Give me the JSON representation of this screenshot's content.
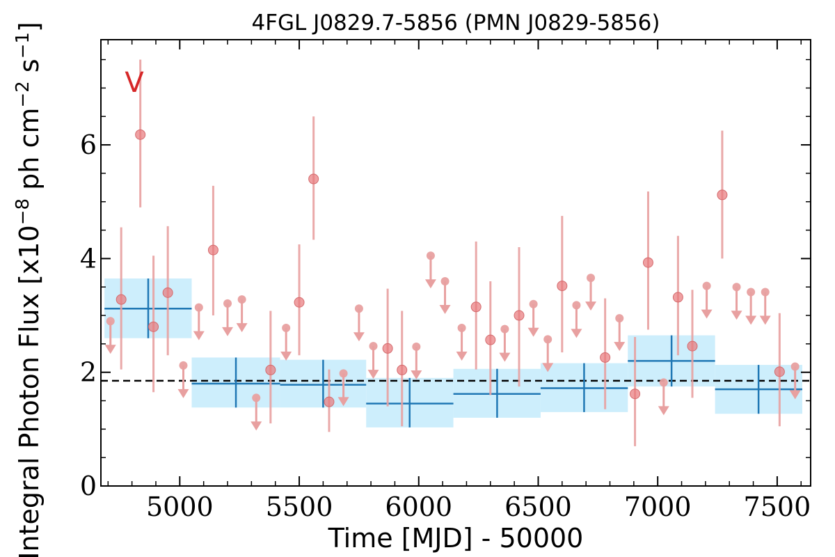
{
  "chart_data": {
    "type": "scatter",
    "title": "4FGL J0829.7-5856 (PMN J0829-5856)",
    "xlabel": "Time [MJD] - 50000",
    "ylabel": "Integral Photon Flux [x10",
    "ylabel_sup1": "−8",
    "ylabel_mid": " ph cm",
    "ylabel_sup2": "−2",
    "ylabel_mid2": " s",
    "ylabel_sup3": "−1",
    "ylabel_end": "]",
    "xlim": [
      4670,
      7640
    ],
    "ylim": [
      0,
      7.85
    ],
    "x_ticks": [
      5000,
      5500,
      6000,
      6500,
      7000,
      7500
    ],
    "x_tick_labels": [
      "5000",
      "5500",
      "6000",
      "6500",
      "7000",
      "7500"
    ],
    "y_ticks": [
      0,
      2,
      4,
      6
    ],
    "y_tick_labels": [
      "0",
      "2",
      "4",
      "6"
    ],
    "annotation": {
      "text": "V",
      "x": 4810,
      "y": 7.1
    },
    "mean_flux": 1.85,
    "colors": {
      "points": "#e8777a",
      "error_bars": "#e8a0a0",
      "binned": "#1f77b4",
      "binned_band": "#cdeefc",
      "mean_line": "#000000",
      "annotation": "#d62728"
    },
    "detections": [
      {
        "x": 4755,
        "y": 3.28,
        "lo": 2.05,
        "hi": 4.55
      },
      {
        "x": 4835,
        "y": 6.18,
        "lo": 4.9,
        "hi": 7.5
      },
      {
        "x": 4890,
        "y": 2.8,
        "lo": 1.65,
        "hi": 4.05
      },
      {
        "x": 4950,
        "y": 3.4,
        "lo": 2.3,
        "hi": 4.57
      },
      {
        "x": 5140,
        "y": 4.15,
        "lo": 3.0,
        "hi": 5.28
      },
      {
        "x": 5380,
        "y": 2.04,
        "lo": 1.1,
        "hi": 3.08
      },
      {
        "x": 5500,
        "y": 3.23,
        "lo": 2.3,
        "hi": 4.25
      },
      {
        "x": 5560,
        "y": 5.4,
        "lo": 4.33,
        "hi": 6.5
      },
      {
        "x": 5625,
        "y": 1.48,
        "lo": 0.95,
        "hi": 2.05
      },
      {
        "x": 5870,
        "y": 2.42,
        "lo": 1.4,
        "hi": 3.47
      },
      {
        "x": 5930,
        "y": 2.04,
        "lo": 1.05,
        "hi": 3.08
      },
      {
        "x": 6240,
        "y": 3.15,
        "lo": 2.05,
        "hi": 4.3
      },
      {
        "x": 6300,
        "y": 2.57,
        "lo": 1.6,
        "hi": 3.6
      },
      {
        "x": 6420,
        "y": 3.0,
        "lo": 1.75,
        "hi": 4.2
      },
      {
        "x": 6600,
        "y": 3.52,
        "lo": 2.35,
        "hi": 4.75
      },
      {
        "x": 6780,
        "y": 2.26,
        "lo": 1.35,
        "hi": 3.3
      },
      {
        "x": 6905,
        "y": 1.62,
        "lo": 0.7,
        "hi": 2.62
      },
      {
        "x": 6960,
        "y": 3.93,
        "lo": 2.75,
        "hi": 5.18
      },
      {
        "x": 7085,
        "y": 3.32,
        "lo": 2.3,
        "hi": 4.4
      },
      {
        "x": 7145,
        "y": 2.46,
        "lo": 1.55,
        "hi": 3.45
      },
      {
        "x": 7270,
        "y": 5.12,
        "lo": 4.0,
        "hi": 6.25
      },
      {
        "x": 7510,
        "y": 2.01,
        "lo": 1.05,
        "hi": 3.04
      }
    ],
    "upper_limits": [
      {
        "x": 4710,
        "y": 2.9
      },
      {
        "x": 5015,
        "y": 2.12
      },
      {
        "x": 5080,
        "y": 3.14
      },
      {
        "x": 5200,
        "y": 3.21
      },
      {
        "x": 5260,
        "y": 3.28
      },
      {
        "x": 5320,
        "y": 1.55
      },
      {
        "x": 5445,
        "y": 2.78
      },
      {
        "x": 5685,
        "y": 1.98
      },
      {
        "x": 5750,
        "y": 3.12
      },
      {
        "x": 5810,
        "y": 2.46
      },
      {
        "x": 5990,
        "y": 2.45
      },
      {
        "x": 6050,
        "y": 4.05
      },
      {
        "x": 6110,
        "y": 3.6
      },
      {
        "x": 6180,
        "y": 2.78
      },
      {
        "x": 6360,
        "y": 2.76
      },
      {
        "x": 6480,
        "y": 3.2
      },
      {
        "x": 6540,
        "y": 2.58
      },
      {
        "x": 6660,
        "y": 3.18
      },
      {
        "x": 6720,
        "y": 3.66
      },
      {
        "x": 6840,
        "y": 2.95
      },
      {
        "x": 7025,
        "y": 1.82
      },
      {
        "x": 7205,
        "y": 3.52
      },
      {
        "x": 7330,
        "y": 3.5
      },
      {
        "x": 7390,
        "y": 3.41
      },
      {
        "x": 7450,
        "y": 3.41
      },
      {
        "x": 7575,
        "y": 2.1
      }
    ],
    "binned": [
      {
        "x_start": 4685,
        "x_end": 5050,
        "x": 4868,
        "y": 3.12,
        "lo": 2.6,
        "hi": 3.65
      },
      {
        "x_start": 5050,
        "x_end": 5420,
        "x": 5235,
        "y": 1.8,
        "lo": 1.38,
        "hi": 2.26
      },
      {
        "x_start": 5420,
        "x_end": 5780,
        "x": 5600,
        "y": 1.78,
        "lo": 1.38,
        "hi": 2.22
      },
      {
        "x_start": 5780,
        "x_end": 6145,
        "x": 5962,
        "y": 1.45,
        "lo": 1.03,
        "hi": 1.9
      },
      {
        "x_start": 6145,
        "x_end": 6510,
        "x": 6328,
        "y": 1.62,
        "lo": 1.2,
        "hi": 2.06
      },
      {
        "x_start": 6510,
        "x_end": 6875,
        "x": 6692,
        "y": 1.72,
        "lo": 1.3,
        "hi": 2.16
      },
      {
        "x_start": 6875,
        "x_end": 7240,
        "x": 7058,
        "y": 2.2,
        "lo": 1.75,
        "hi": 2.65
      },
      {
        "x_start": 7240,
        "x_end": 7605,
        "x": 7422,
        "y": 1.7,
        "lo": 1.27,
        "hi": 2.13
      }
    ]
  }
}
